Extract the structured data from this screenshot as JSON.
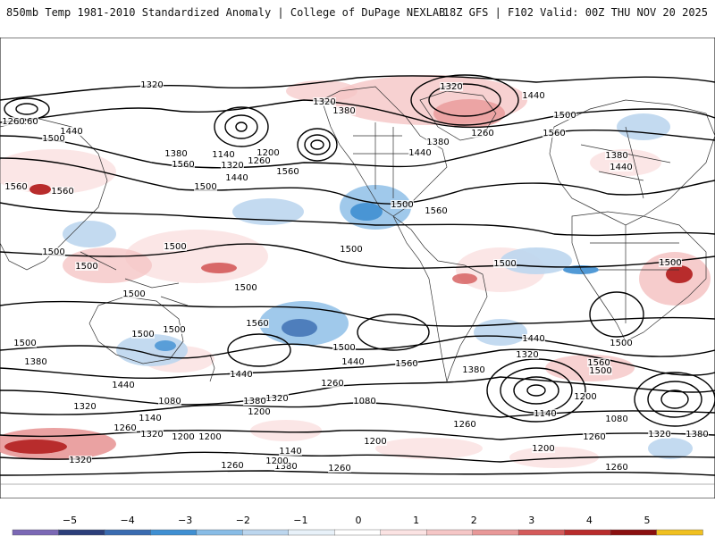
{
  "header": {
    "title": "850mb Temp 1981-2010 Standardized Anomaly | College of DuPage NEXLAB",
    "run_info": "18Z GFS | F102 Valid: 00Z THU NOV 20 2025"
  },
  "map": {
    "contour_labels": [
      "1320",
      "1260",
      "1260",
      "1440",
      "1500",
      "1560",
      "1560",
      "1560",
      "1380",
      "1140",
      "1320",
      "1260",
      "1200",
      "1440",
      "1500",
      "1560",
      "1320",
      "1380",
      "1440",
      "1500",
      "1500",
      "1320",
      "1440",
      "1380",
      "1260",
      "1500",
      "1560",
      "1380",
      "1440",
      "1560",
      "1500",
      "1500",
      "1500",
      "1500",
      "1500",
      "1500",
      "1500",
      "1500",
      "1500",
      "1500",
      "1560",
      "1500",
      "1500",
      "1440",
      "1560",
      "1440",
      "1380",
      "1320",
      "1260",
      "1200",
      "1140",
      "1080",
      "1560",
      "1500",
      "1440",
      "1380",
      "1320",
      "1320",
      "1260",
      "1200",
      "1140",
      "1080",
      "1200",
      "1320",
      "1260",
      "1200",
      "1140",
      "1200",
      "1260",
      "1380",
      "1440",
      "1380",
      "1320",
      "1200",
      "1260",
      "1080",
      "1320",
      "1380",
      "1260",
      "1200",
      "1260"
    ]
  },
  "colorbar": {
    "ticks": [
      "−5",
      "−4",
      "−3",
      "−2",
      "−1",
      "0",
      "1",
      "2",
      "3",
      "4",
      "5"
    ],
    "colors": [
      "#7b68b5",
      "#2c3e7a",
      "#3a6bb0",
      "#3f8fd2",
      "#88bce6",
      "#bcd6ee",
      "#e8f1f9",
      "#ffffff",
      "#fbe3e3",
      "#f5c6c6",
      "#e89898",
      "#d45a5a",
      "#b82c2c",
      "#8a1010",
      "#f0c020"
    ]
  }
}
